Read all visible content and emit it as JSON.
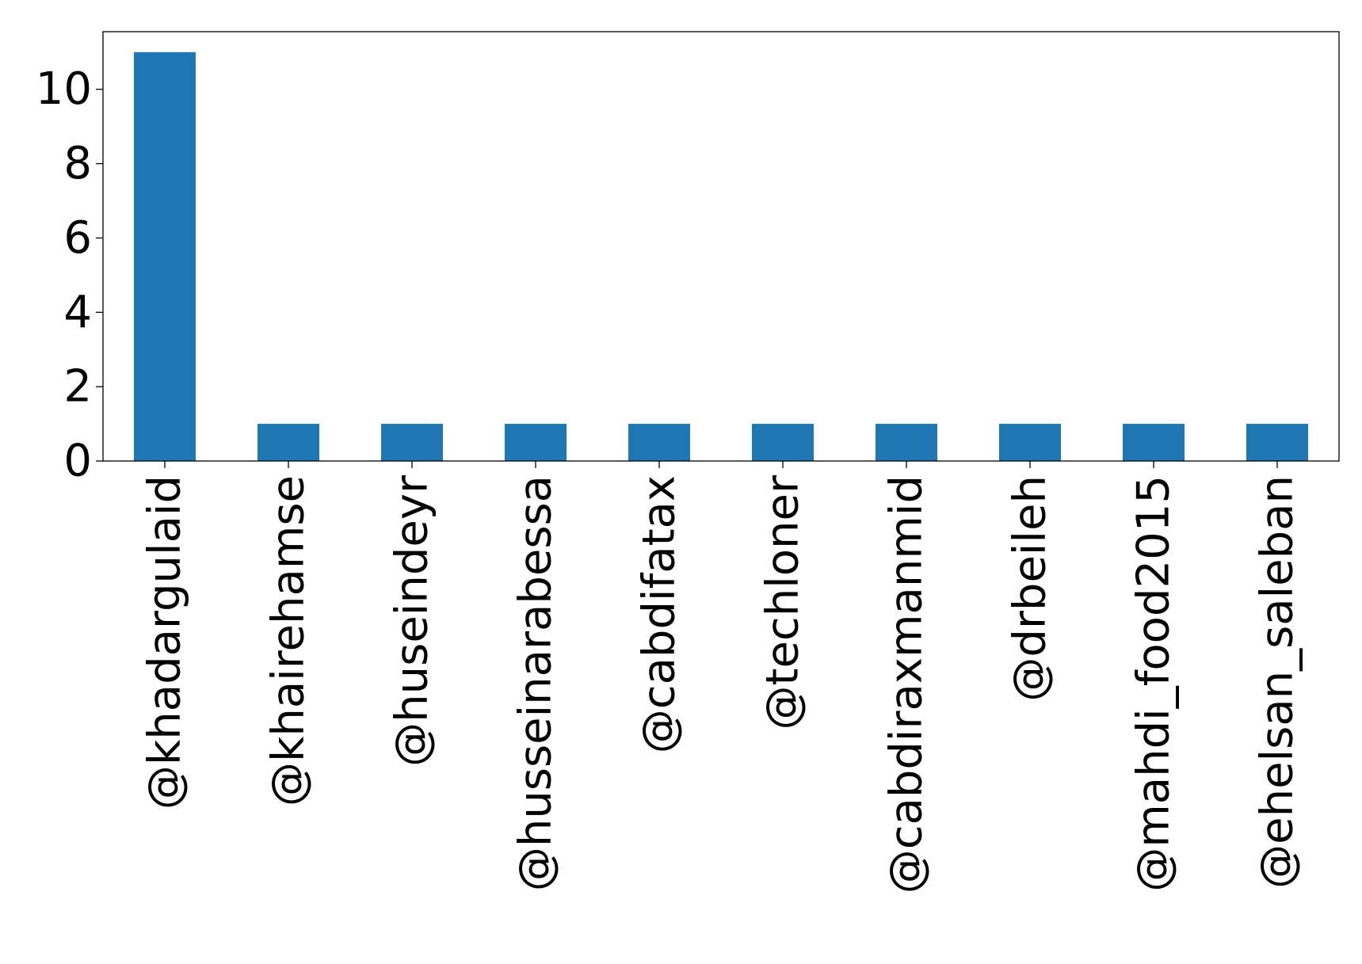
{
  "chart_data": {
    "type": "bar",
    "title": "",
    "xlabel": "",
    "ylabel": "",
    "categories": [
      "@khadargulaid",
      "@khairehamse",
      "@huseindeyr",
      "@husseinarabessa",
      "@cabdifatax",
      "@techloner",
      "@cabdiraxmanmid",
      "@drbeileh",
      "@mahdi_food2015",
      "@ehelsan_saleban"
    ],
    "values": [
      11,
      1,
      1,
      1,
      1,
      1,
      1,
      1,
      1,
      1
    ],
    "ylim": [
      0,
      11.55
    ],
    "yticks": [
      0,
      2,
      4,
      6,
      8,
      10
    ],
    "grid": false,
    "legend": "none",
    "bar_color": "#1f77b4"
  }
}
